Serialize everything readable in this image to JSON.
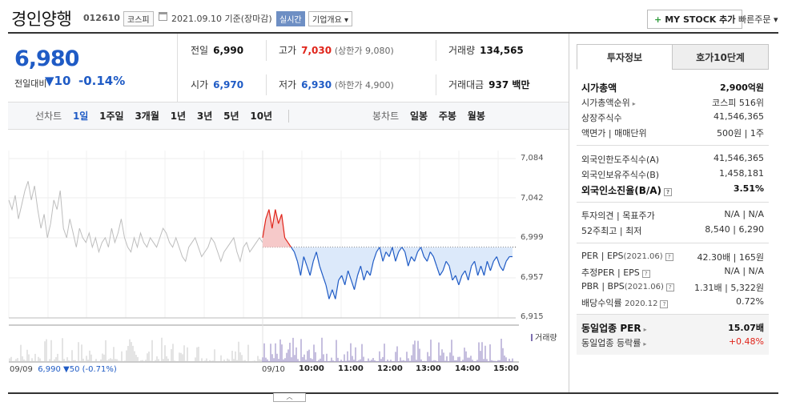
{
  "header": {
    "name": "경인양행",
    "code": "012610",
    "market": "코스피",
    "date": "2021.09.10 기준(장마감)",
    "realtime": "실시간",
    "corp_overview": "기업개요 ▾",
    "mystock_plus": "+",
    "mystock": "MY STOCK 추가",
    "quick_order": "빠른주문 ▾"
  },
  "price": {
    "current": "6,980",
    "vs_prev_label": "전일대비",
    "change_sign": "▼",
    "change": "10",
    "change_pct": "-0.14%"
  },
  "quote": {
    "prev_close": {
      "label": "전일",
      "value": "6,990"
    },
    "high": {
      "label": "고가",
      "value": "7,030",
      "sub": "(상한가 9,080)"
    },
    "volume": {
      "label": "거래량",
      "value": "134,565"
    },
    "open": {
      "label": "시가",
      "value": "6,970"
    },
    "low": {
      "label": "저가",
      "value": "6,930",
      "sub": "(하한가 4,900)"
    },
    "amount": {
      "label": "거래대금",
      "value": "937 백만"
    }
  },
  "line_tabs": {
    "label": "선차트",
    "items": [
      "1일",
      "1주일",
      "3개월",
      "1년",
      "3년",
      "5년",
      "10년"
    ],
    "active": 0
  },
  "candle_tabs": {
    "label": "봉차트",
    "items": [
      "일봉",
      "주봉",
      "월봉"
    ]
  },
  "chart_data": {
    "type": "line",
    "y_ticks": [
      "7,084",
      "7,042",
      "6,999",
      "6,957",
      "6,915"
    ],
    "ylim": [
      6915,
      7084
    ],
    "prev_close": 6990,
    "x_ticks": [
      "09/10",
      "10:00",
      "11:00",
      "12:00",
      "13:00",
      "14:00",
      "15:00"
    ],
    "volume_legend": "거래량",
    "prev_day_info": {
      "date": "09/09",
      "close": "6,990",
      "change": "▼50",
      "pct": "(-0.71%)"
    },
    "prev_day_series": [
      7040,
      7030,
      7045,
      7020,
      7035,
      7050,
      7060,
      7040,
      7055,
      7030,
      7010,
      7025,
      7000,
      7015,
      7040,
      7030,
      7050,
      7010,
      7000,
      7020,
      7005,
      6990,
      7010,
      7000,
      6995,
      7005,
      6990,
      7000,
      6985,
      6995,
      7000,
      6990,
      7010,
      6995,
      7005,
      7020,
      7000,
      6990,
      6985,
      7000,
      6990,
      7005,
      6995,
      6990,
      7000,
      6995,
      6990,
      7000,
      7010,
      7005,
      6995,
      6990,
      7000,
      6990,
      6980,
      6975,
      6990,
      6995,
      7000,
      6990,
      6980,
      6985,
      6990,
      7000,
      6995,
      6985,
      6975,
      6985,
      6990,
      6995,
      7000,
      6985,
      6975,
      6990,
      6995,
      6985,
      6990,
      6995,
      7000,
      6995
    ],
    "today_series": [
      7000,
      7020,
      7030,
      7010,
      7030,
      7015,
      7025,
      7000,
      6995,
      6990,
      6985,
      6975,
      6960,
      6980,
      6970,
      6960,
      6975,
      6985,
      6970,
      6960,
      6950,
      6935,
      6945,
      6935,
      6955,
      6960,
      6950,
      6965,
      6955,
      6945,
      6960,
      6970,
      6955,
      6965,
      6960,
      6975,
      6985,
      6990,
      6975,
      6985,
      6980,
      6990,
      6975,
      6985,
      6990,
      6985,
      6970,
      6980,
      6975,
      6985,
      6990,
      6980,
      6975,
      6985,
      6980,
      6970,
      6960,
      6965,
      6975,
      6970,
      6955,
      6960,
      6950,
      6960,
      6965,
      6955,
      6970,
      6975,
      6960,
      6970,
      6960,
      6975,
      6965,
      6975,
      6980,
      6970,
      6965,
      6975,
      6980,
      6980
    ]
  },
  "invest_tabs": [
    "투자정보",
    "호가10단계"
  ],
  "invest": {
    "market_cap": {
      "label": "시가총액",
      "value": "2,900억원"
    },
    "market_cap_rank": {
      "label": "시가총액순위",
      "value": "코스피 516위"
    },
    "shares": {
      "label": "상장주식수",
      "value": "41,546,365"
    },
    "par_unit": {
      "label": "액면가",
      "sep": "|",
      "label2": "매매단위",
      "value": "500원",
      "value2": "1주"
    },
    "foreign_limit": {
      "label": "외국인한도주식수(A)",
      "value": "41,546,365"
    },
    "foreign_own": {
      "label": "외국인보유주식수(B)",
      "value": "1,458,181"
    },
    "foreign_ratio": {
      "label": "외국인소진율(B/A)",
      "value": "3.51%"
    },
    "opinion": {
      "label": "투자의견",
      "sep": "|",
      "label2": "목표주가",
      "value": "N/A",
      "value2": "N/A"
    },
    "week52": {
      "label": "52주최고",
      "sep": "|",
      "label2": "최저",
      "value": "8,540",
      "value2": "6,290"
    },
    "per": {
      "label": "PER",
      "sep": "|",
      "label2": "EPS",
      "sub": "(2021.06)",
      "value": "42.30배",
      "value2": "165원"
    },
    "est_per": {
      "label": "추정PER",
      "sep": "|",
      "label2": "EPS",
      "value": "N/A",
      "value2": "N/A"
    },
    "pbr": {
      "label": "PBR",
      "sep": "|",
      "label2": "BPS",
      "sub": "(2021.06)",
      "value": "1.31배",
      "value2": "5,322원"
    },
    "dividend": {
      "label": "배당수익률",
      "sub": "2020.12",
      "value": "0.72%"
    },
    "sector_per": {
      "label": "동일업종 PER",
      "value": "15.07배"
    },
    "sector_change": {
      "label": "동일업종 등락률",
      "value": "+0.48%"
    }
  }
}
